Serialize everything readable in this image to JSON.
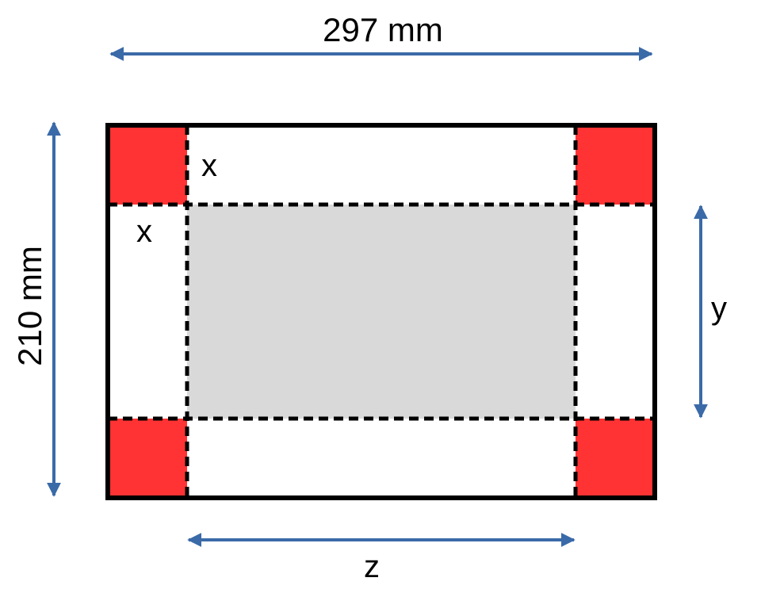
{
  "labels": {
    "width": "297 mm",
    "height": "210 mm",
    "corner_top": "x",
    "corner_left": "x",
    "side_y": "y",
    "bottom_z": "z"
  },
  "colors": {
    "corner_fill": "#ff3333",
    "base_fill": "#d9d9d9",
    "arrow": "#3b6aa8",
    "outline": "#000000",
    "paper": "#ffffff"
  }
}
